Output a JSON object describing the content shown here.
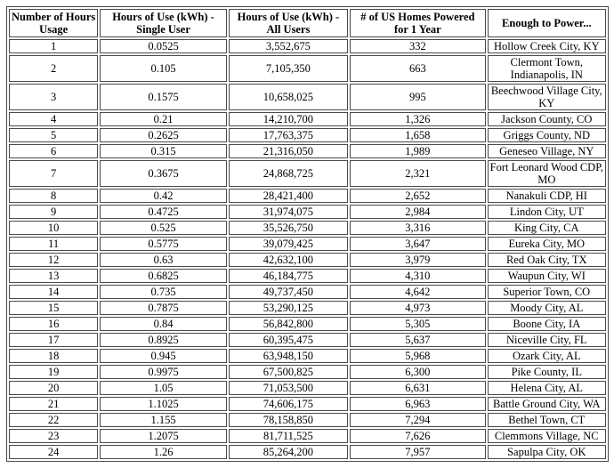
{
  "chart_data": {
    "type": "table",
    "columns": [
      "Number of Hours Usage",
      "Hours of Use (kWh) - Single User",
      "Hours of Use (kWh) - All Users",
      "# of US Homes Powered for 1 Year",
      "Enough to Power..."
    ],
    "column_keys": [
      "hours-usage",
      "kwh-single-user",
      "kwh-all-users",
      "homes-powered",
      "enough-to-power"
    ],
    "rows": [
      [
        "1",
        "0.0525",
        "3,552,675",
        "332",
        "Hollow Creek City, KY"
      ],
      [
        "2",
        "0.105",
        "7,105,350",
        "663",
        "Clermont Town, Indianapolis, IN"
      ],
      [
        "3",
        "0.1575",
        "10,658,025",
        "995",
        "Beechwood Village City, KY"
      ],
      [
        "4",
        "0.21",
        "14,210,700",
        "1,326",
        "Jackson County, CO"
      ],
      [
        "5",
        "0.2625",
        "17,763,375",
        "1,658",
        "Griggs County, ND"
      ],
      [
        "6",
        "0.315",
        "21,316,050",
        "1,989",
        "Geneseo Village, NY"
      ],
      [
        "7",
        "0.3675",
        "24,868,725",
        "2,321",
        "Fort Leonard Wood CDP, MO"
      ],
      [
        "8",
        "0.42",
        "28,421,400",
        "2,652",
        "Nanakuli CDP, HI"
      ],
      [
        "9",
        "0.4725",
        "31,974,075",
        "2,984",
        "Lindon City, UT"
      ],
      [
        "10",
        "0.525",
        "35,526,750",
        "3,316",
        "King City, CA"
      ],
      [
        "11",
        "0.5775",
        "39,079,425",
        "3,647",
        "Eureka City, MO"
      ],
      [
        "12",
        "0.63",
        "42,632,100",
        "3,979",
        "Red Oak City, TX"
      ],
      [
        "13",
        "0.6825",
        "46,184,775",
        "4,310",
        "Waupun City, WI"
      ],
      [
        "14",
        "0.735",
        "49,737,450",
        "4,642",
        "Superior Town, CO"
      ],
      [
        "15",
        "0.7875",
        "53,290,125",
        "4,973",
        "Moody City, AL"
      ],
      [
        "16",
        "0.84",
        "56,842,800",
        "5,305",
        "Boone City, IA"
      ],
      [
        "17",
        "0.8925",
        "60,395,475",
        "5,637",
        "Niceville City, FL"
      ],
      [
        "18",
        "0.945",
        "63,948,150",
        "5,968",
        "Ozark City, AL"
      ],
      [
        "19",
        "0.9975",
        "67,500,825",
        "6,300",
        "Pike County, IL"
      ],
      [
        "20",
        "1.05",
        "71,053,500",
        "6,631",
        "Helena City, AL"
      ],
      [
        "21",
        "1.1025",
        "74,606,175",
        "6,963",
        "Battle Ground City, WA"
      ],
      [
        "22",
        "1.155",
        "78,158,850",
        "7,294",
        "Bethel Town, CT"
      ],
      [
        "23",
        "1.2075",
        "81,711,525",
        "7,626",
        "Clemmons Village, NC"
      ],
      [
        "24",
        "1.26",
        "85,264,200",
        "7,957",
        "Sapulpa City, OK"
      ]
    ],
    "layout": {
      "grid": "all-borders",
      "header_rows": 1,
      "text_align": "center"
    },
    "colors": {
      "border": "#4a4a4a",
      "background": "#ffffff",
      "text": "#000000"
    }
  }
}
